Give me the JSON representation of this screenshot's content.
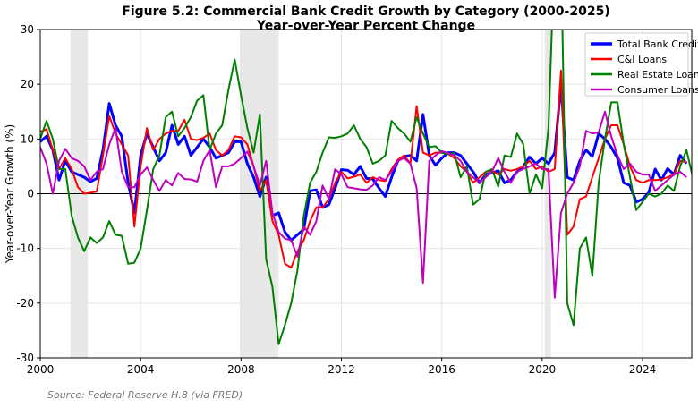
{
  "chart_data": {
    "type": "line",
    "title": "Figure 5.2: Commercial Bank Credit Growth by Category (2000-2025)",
    "subtitle": "Year-over-Year Percent Change",
    "xlabel": "",
    "ylabel": "Year-over-Year Growth (%)",
    "xlim": [
      2000,
      2025.96
    ],
    "ylim": [
      -30,
      30
    ],
    "xticks": [
      2000,
      2004,
      2008,
      2012,
      2016,
      2020,
      2024
    ],
    "yticks": [
      -30,
      -20,
      -10,
      0,
      10,
      20,
      30
    ],
    "grid": true,
    "legend_position": "top-right",
    "recessions": [
      [
        2001.2,
        2001.9
      ],
      [
        2007.95,
        2009.5
      ],
      [
        2020.1,
        2020.35
      ]
    ],
    "x_start": 2000,
    "x_step": 0.25,
    "series": [
      {
        "name": "Total Bank Credit",
        "color": "#0000ff",
        "width": 3,
        "values": [
          9.5,
          10.5,
          8,
          2.5,
          6,
          4,
          3.5,
          3,
          2.2,
          2.8,
          8,
          16.5,
          12.5,
          10.5,
          2,
          -3.5,
          7,
          11,
          8.5,
          6,
          7.5,
          12.5,
          9,
          10.5,
          7,
          8.5,
          10,
          8.5,
          6.5,
          7,
          7.5,
          9.5,
          9.5,
          5.5,
          3,
          -0.5,
          3,
          -4,
          -3.5,
          -7,
          -8.5,
          -7.5,
          -6.5,
          0.5,
          0.7,
          -2.5,
          -2,
          1,
          4.4,
          4.3,
          3.5,
          5,
          2.8,
          2.7,
          1,
          -0.5,
          3,
          6,
          6.8,
          7,
          6,
          14.5,
          7,
          5.2,
          6.5,
          7.5,
          7.5,
          7,
          5.5,
          4,
          2,
          3.5,
          3.8,
          4.2,
          2,
          2.5,
          4,
          5,
          6.7,
          5.5,
          6.5,
          5.5,
          7.5,
          20,
          3,
          2.5,
          6,
          8,
          6.8,
          11,
          10,
          8.5,
          6.5,
          2,
          1.5,
          -1.5,
          -1,
          0.2,
          4.5,
          2.5,
          4.6,
          3.5,
          7,
          5.5
        ]
      },
      {
        "name": "C&I Loans",
        "color": "#ff0000",
        "width": 2,
        "values": [
          11.3,
          11.8,
          8,
          4.5,
          6.5,
          4.5,
          1.2,
          0,
          0.2,
          0.4,
          7,
          14.2,
          11,
          9,
          7,
          -6,
          5,
          12,
          8,
          10,
          11,
          11.5,
          11.5,
          13.5,
          10,
          9.8,
          10.2,
          11,
          8,
          7,
          8,
          10.5,
          10.3,
          9,
          5,
          0.5,
          2.5,
          -5,
          -7.5,
          -12.8,
          -13.5,
          -10.5,
          -8.5,
          -5,
          -2.5,
          -2.5,
          -1,
          2,
          4,
          2.8,
          3.1,
          3.5,
          2,
          3,
          2.5,
          2.3,
          4.5,
          6.2,
          7,
          5.5,
          16,
          7.5,
          7,
          7.5,
          7.5,
          7.3,
          6.5,
          5,
          4,
          2,
          3,
          4,
          4.2,
          3.5,
          4.5,
          4.2,
          4.5,
          5,
          6,
          4.5,
          5,
          4,
          4.5,
          22.5,
          -7.5,
          -6,
          -1,
          -0.5,
          3,
          6.5,
          10,
          12.5,
          12.5,
          9,
          5,
          2.5,
          2,
          2.5,
          2.5,
          2.6,
          3,
          3.5,
          6,
          5.8
        ]
      },
      {
        "name": "Real Estate Loans",
        "color": "#008000",
        "width": 2,
        "values": [
          10,
          13.3,
          10,
          4.5,
          4.5,
          -4,
          -8,
          -10.5,
          -8,
          -9,
          -8,
          -5,
          -7.5,
          -7.7,
          -12.8,
          -12.6,
          -10,
          -3,
          4.5,
          7,
          14,
          15,
          10.5,
          12,
          14,
          17,
          18,
          8,
          11,
          12.5,
          19,
          24.5,
          18,
          12,
          7.5,
          14.5,
          -12,
          -17,
          -27.5,
          -24,
          -20,
          -14,
          -4,
          2,
          4,
          7.5,
          10.3,
          10.2,
          10.5,
          11,
          12.5,
          10,
          8.5,
          5.5,
          6,
          7,
          13.3,
          12,
          11,
          9.5,
          14,
          11,
          8.5,
          8.7,
          7.5,
          7.2,
          7.4,
          3,
          5,
          -2,
          -1,
          4,
          4.5,
          1.3,
          7,
          6.7,
          11,
          9,
          0,
          3.5,
          1,
          12,
          45,
          45,
          -20,
          -24,
          -10,
          -8,
          -15,
          2,
          10,
          16.7,
          16.7,
          9,
          3,
          -3,
          -1.5,
          0,
          -0.5,
          0,
          1.5,
          0.5,
          5,
          8,
          3
        ]
      },
      {
        "name": "Consumer Loans",
        "color": "#bf00bf",
        "width": 2,
        "values": [
          8.5,
          5.5,
          0,
          6,
          8.2,
          6.5,
          6,
          5,
          2.5,
          4,
          4.5,
          9,
          12,
          4,
          1.2,
          1.2,
          3.5,
          4.8,
          2.5,
          0.5,
          2.5,
          1.5,
          3.8,
          2.7,
          2.6,
          2.2,
          6,
          8,
          1.2,
          5,
          5,
          5.5,
          6.5,
          7.7,
          5,
          1.5,
          6,
          -3.5,
          -7,
          -8.2,
          -8.5,
          -11.5,
          -6,
          -7.5,
          -5,
          1.5,
          -1,
          4.5,
          3.5,
          1.2,
          1,
          0.8,
          0.7,
          1.5,
          3,
          2.5,
          4,
          6,
          6.5,
          5.5,
          1,
          -16.3,
          6,
          7,
          7.8,
          7.4,
          7,
          6,
          4,
          3,
          2,
          3,
          4,
          6.5,
          4,
          2,
          4,
          4.5,
          5,
          5.5,
          4.5,
          4.5,
          -19,
          -3.5,
          0,
          2,
          5,
          11.5,
          11,
          11.2,
          15,
          10.5,
          7,
          4.5,
          5.5,
          4,
          3.5,
          3.5,
          0.5,
          1.5,
          2.5,
          3.5,
          4,
          3
        ]
      }
    ]
  },
  "source": "Source: Federal Reserve H.8 (via FRED)"
}
